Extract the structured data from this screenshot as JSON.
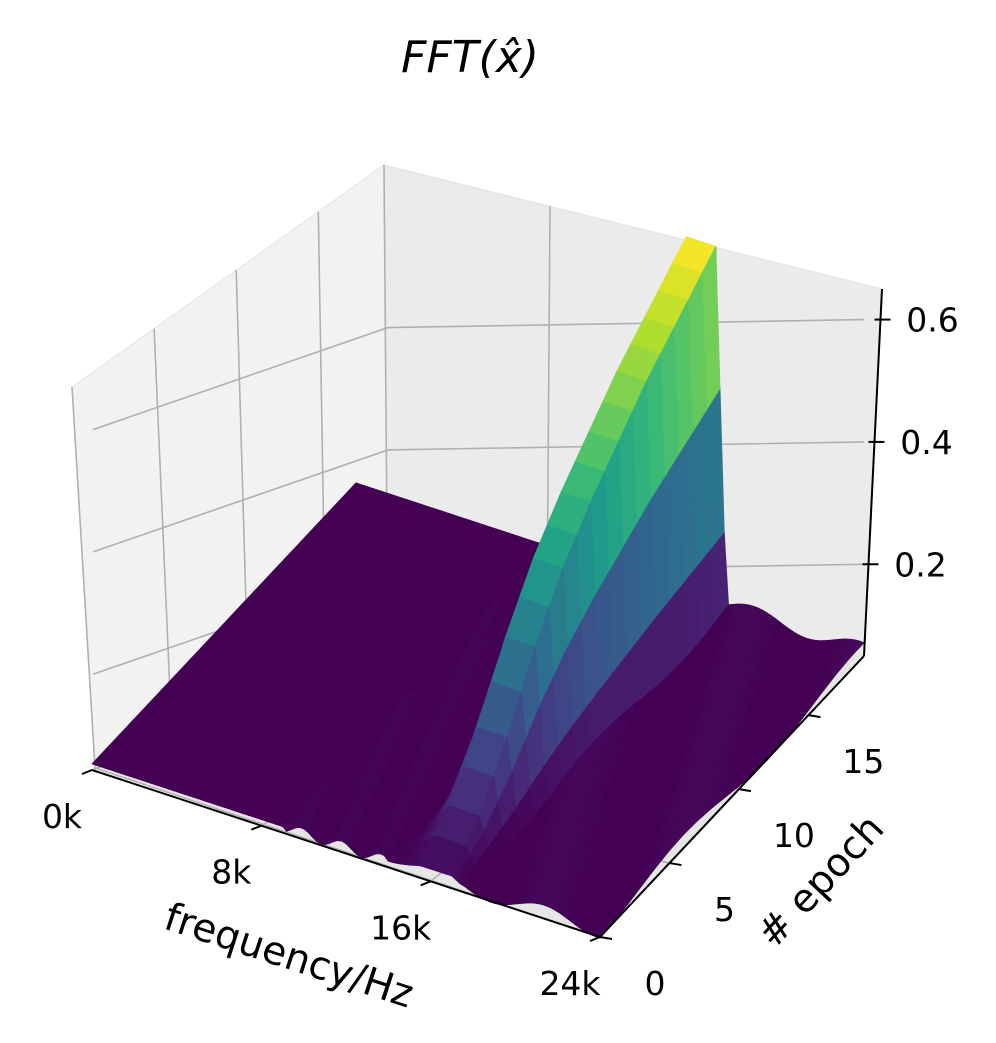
{
  "chart_data": {
    "type": "surface3d",
    "title": "FFT(x̂)",
    "xlabel": "frequency/Hz",
    "ylabel": "# epoch",
    "zlabel": "",
    "x_ticks": [
      "0k",
      "8k",
      "16k",
      "24k"
    ],
    "x_tick_values": [
      0,
      8000,
      16000,
      24000
    ],
    "y_ticks": [
      "0",
      "5",
      "10",
      "15"
    ],
    "y_tick_values": [
      0,
      5,
      10,
      15
    ],
    "z_ticks": [
      "0.2",
      "0.4",
      "0.6"
    ],
    "z_tick_values": [
      0.2,
      0.4,
      0.6
    ],
    "xlim": [
      0,
      24000
    ],
    "ylim": [
      0,
      19
    ],
    "zlim": [
      0.05,
      0.65
    ],
    "colormap": "viridis",
    "grid": true,
    "surface_profile": {
      "description_peak_frequency_hz": 15500,
      "frequencies_hz": [
        0,
        4000,
        8000,
        10000,
        12000,
        13000,
        14000,
        14500,
        15000,
        15500,
        16000,
        16500,
        17000,
        18000,
        20000,
        22000,
        24000
      ],
      "epochs": [
        0,
        2,
        4,
        6,
        8,
        10,
        12,
        14,
        16,
        18,
        19
      ],
      "peak_amplitude_by_epoch": [
        0.07,
        0.12,
        0.2,
        0.3,
        0.38,
        0.44,
        0.49,
        0.54,
        0.58,
        0.62,
        0.64
      ],
      "baseline_amplitude": 0.06
    }
  }
}
